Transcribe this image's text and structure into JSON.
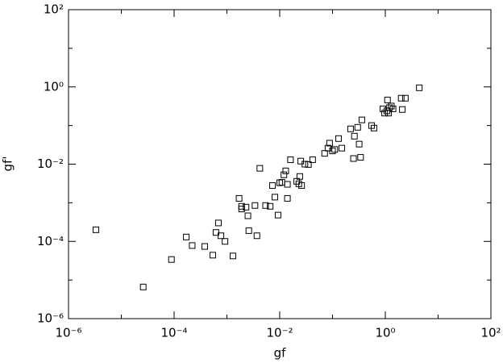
{
  "chart_data": {
    "type": "scatter",
    "xlabel": "gf",
    "ylabel": "gf'",
    "xscale": "log",
    "yscale": "log",
    "color": "#000000",
    "marker": "square",
    "xlim": [
      1e-06,
      100
    ],
    "ylim": [
      1e-06,
      100
    ],
    "xticks": [
      {
        "value": 1e-06,
        "label": "10⁻⁶"
      },
      {
        "value": 0.0001,
        "label": "10⁻⁴"
      },
      {
        "value": 0.01,
        "label": "10⁻²"
      },
      {
        "value": 1,
        "label": "10⁰"
      },
      {
        "value": 100,
        "label": "10²"
      }
    ],
    "yticks": [
      {
        "value": 1e-06,
        "label": "10⁻⁶"
      },
      {
        "value": 0.0001,
        "label": "10⁻⁴"
      },
      {
        "value": 0.01,
        "label": "10⁻²"
      },
      {
        "value": 1,
        "label": "10⁰"
      },
      {
        "value": 100,
        "label": "10²"
      }
    ],
    "xminorticks": [
      1e-05,
      0.001,
      0.1,
      10
    ],
    "yminorticks": [
      1e-05,
      0.001,
      0.1,
      10
    ],
    "x": [
      3.3e-06,
      2.6e-05,
      8.9e-05,
      0.00017,
      0.00022,
      0.00038,
      0.00054,
      0.00062,
      0.00069,
      0.00077,
      0.00092,
      0.0013,
      0.0017,
      0.0019,
      0.0019,
      0.0023,
      0.0025,
      0.0026,
      0.0034,
      0.0037,
      0.0042,
      0.0054,
      0.0066,
      0.0073,
      0.0081,
      0.0093,
      0.01,
      0.011,
      0.012,
      0.013,
      0.014,
      0.014,
      0.016,
      0.021,
      0.023,
      0.024,
      0.025,
      0.026,
      0.03,
      0.035,
      0.042,
      0.071,
      0.082,
      0.088,
      0.1,
      0.11,
      0.13,
      0.15,
      0.22,
      0.25,
      0.26,
      0.3,
      0.32,
      0.34,
      0.36,
      0.55,
      0.61,
      0.9,
      0.97,
      1.07,
      1.1,
      1.15,
      1.2,
      1.3,
      1.4,
      2.0,
      2.1,
      2.4,
      4.4
    ],
    "y": [
      0.0002,
      6.6e-06,
      3.4e-05,
      0.00013,
      7.8e-05,
      7.4e-05,
      4.4e-05,
      0.00017,
      0.0003,
      0.00014,
      0.0001,
      4.2e-05,
      0.0013,
      0.00081,
      0.00069,
      0.00077,
      0.00046,
      0.00019,
      0.00085,
      0.00014,
      0.0078,
      0.00085,
      0.00081,
      0.0028,
      0.0014,
      0.00048,
      0.0033,
      0.0034,
      0.0053,
      0.0067,
      0.003,
      0.0013,
      0.013,
      0.0036,
      0.0031,
      0.0048,
      0.012,
      0.0028,
      0.01,
      0.0098,
      0.013,
      0.019,
      0.026,
      0.035,
      0.022,
      0.024,
      0.046,
      0.026,
      0.082,
      0.014,
      0.053,
      0.09,
      0.033,
      0.015,
      0.14,
      0.1,
      0.086,
      0.27,
      0.21,
      0.24,
      0.46,
      0.21,
      0.29,
      0.32,
      0.27,
      0.51,
      0.26,
      0.51,
      0.95
    ]
  }
}
